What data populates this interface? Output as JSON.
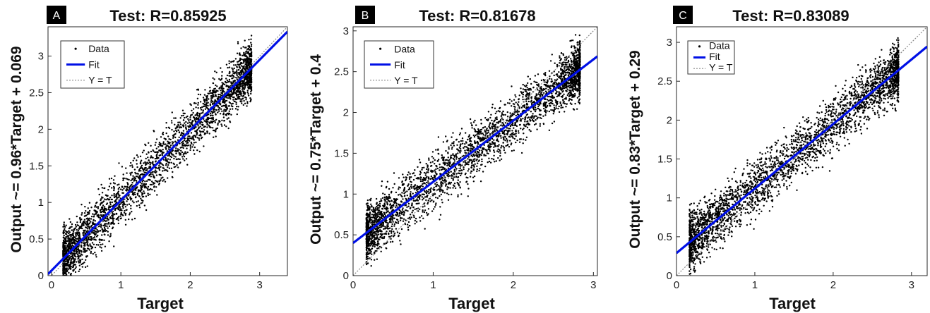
{
  "colors": {
    "points": "#000000",
    "fit": "#0010e6",
    "identity": "#888888",
    "badge": "#000000"
  },
  "chart_data": [
    {
      "type": "scatter",
      "panel_label": "A",
      "title": "Test: R=0.85925",
      "xlabel": "Target",
      "ylabel": "Output ~= 0.96*Target + 0.069",
      "xlim": [
        -0.05,
        3.4
      ],
      "ylim": [
        0,
        3.4
      ],
      "xticks": [
        0,
        1,
        2,
        3
      ],
      "yticks": [
        0,
        0.5,
        1,
        1.5,
        2,
        2.5,
        3
      ],
      "ytick_labels": [
        "0",
        "0.5",
        "1",
        "1.5",
        "2",
        "2.5",
        "3"
      ],
      "cloud": {
        "x_range": [
          0.05,
          3.0
        ],
        "fit_slope": 0.96,
        "fit_intercept": 0.069,
        "spread": 0.45,
        "count": 3200
      },
      "legend": {
        "position": "top-left",
        "entries": [
          "Data",
          "Fit",
          "Y = T"
        ]
      },
      "grid": false
    },
    {
      "type": "scatter",
      "panel_label": "B",
      "title": "Test: R=0.81678",
      "xlabel": "Target",
      "ylabel": "Output ~= 0.75*Target + 0.4",
      "xlim": [
        0,
        3.05
      ],
      "ylim": [
        0,
        3.05
      ],
      "xticks": [
        0,
        1,
        2,
        3
      ],
      "yticks": [
        0,
        0.5,
        1,
        1.5,
        2,
        2.5,
        3
      ],
      "ytick_labels": [
        "0",
        "0.5",
        "1",
        "1.5",
        "2",
        "2.5",
        "3"
      ],
      "cloud": {
        "x_range": [
          0.05,
          2.95
        ],
        "fit_slope": 0.75,
        "fit_intercept": 0.4,
        "spread": 0.42,
        "count": 3200
      },
      "legend": {
        "position": "top-left",
        "entries": [
          "Data",
          "Fit",
          "Y = T"
        ]
      },
      "grid": false
    },
    {
      "type": "scatter",
      "panel_label": "C",
      "title": "Test: R=0.83089",
      "xlabel": "Target",
      "ylabel": "Output ~= 0.83*Target + 0.29",
      "xlim": [
        0,
        3.2
      ],
      "ylim": [
        0,
        3.2
      ],
      "xticks": [
        0,
        1,
        2,
        3
      ],
      "yticks": [
        0,
        0.5,
        1,
        1.5,
        2,
        2.5,
        3
      ],
      "ytick_labels": [
        "0",
        "0.5",
        "1",
        "1.5",
        "2",
        "2.5",
        "3"
      ],
      "cloud": {
        "x_range": [
          0.05,
          2.95
        ],
        "fit_slope": 0.83,
        "fit_intercept": 0.29,
        "spread": 0.43,
        "count": 3200
      },
      "legend": {
        "position": "top-left",
        "entries": [
          "Data",
          "Fit",
          "Y = T"
        ]
      },
      "grid": false
    }
  ]
}
